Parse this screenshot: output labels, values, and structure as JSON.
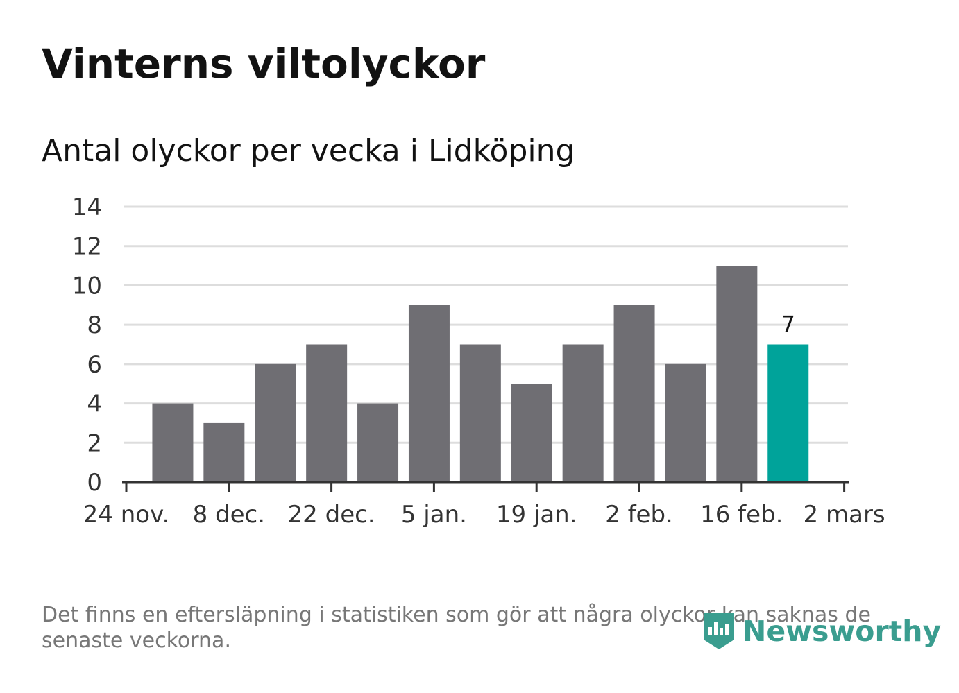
{
  "title": "Vinterns viltolyckor",
  "subtitle": "Antal olyckor per vecka i Lidköping",
  "footnote": "Det finns en eftersläpning i statistiken som gör att några olyckor kan saknas de senaste veckorna.",
  "brand": "Newsworthy",
  "colors": {
    "bar": "#6f6e73",
    "highlight": "#00a39a",
    "grid": "#dddddd",
    "axis": "#333333",
    "brand": "#3a9d8f"
  },
  "chart_data": {
    "type": "bar",
    "title": "Vinterns viltolyckor",
    "subtitle": "Antal olyckor per vecka i Lidköping",
    "xlabel": "",
    "ylabel": "",
    "ylim": [
      0,
      14
    ],
    "yticks": [
      0,
      2,
      4,
      6,
      8,
      10,
      12,
      14
    ],
    "grid": true,
    "x_tick_labels": [
      "24 nov.",
      "8 dec.",
      "22 dec.",
      "5 jan.",
      "19 jan.",
      "2 feb.",
      "16 feb.",
      "2 mars"
    ],
    "values": [
      4,
      3,
      6,
      7,
      4,
      9,
      7,
      5,
      7,
      9,
      6,
      11,
      7
    ],
    "highlight_index": 12,
    "data_labels": [
      {
        "index": 12,
        "text": "7"
      }
    ]
  }
}
